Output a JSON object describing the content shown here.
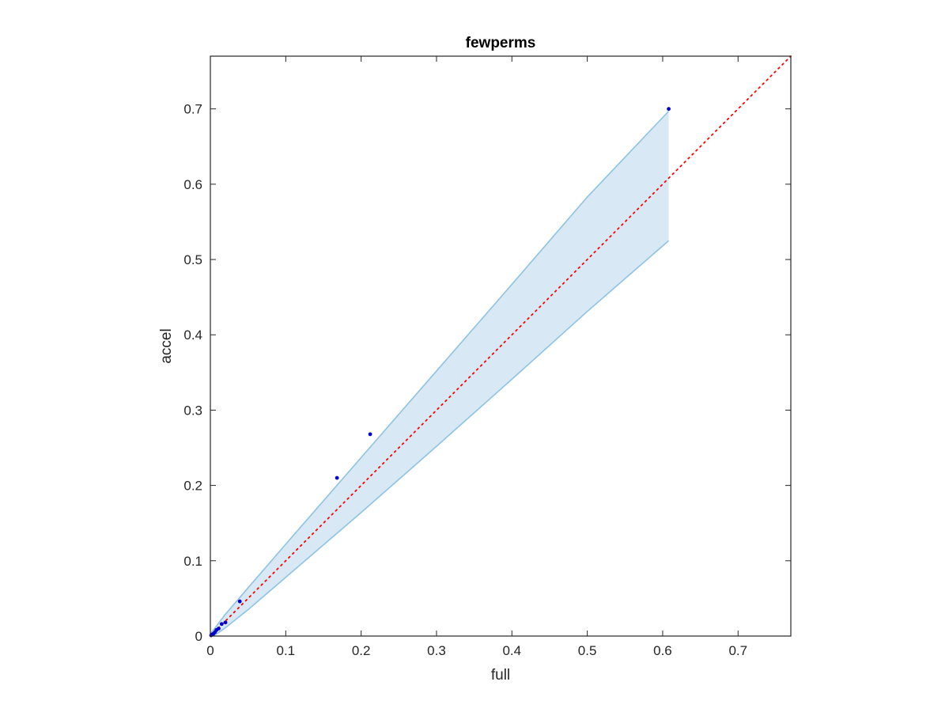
{
  "chart_data": {
    "type": "scatter",
    "title": "fewperms",
    "xlabel": "full",
    "ylabel": "accel",
    "xlim": [
      0,
      0.77
    ],
    "ylim": [
      0,
      0.77
    ],
    "xticks": [
      0,
      0.1,
      0.2,
      0.3,
      0.4,
      0.5,
      0.6,
      0.7
    ],
    "yticks": [
      0,
      0.1,
      0.2,
      0.3,
      0.4,
      0.5,
      0.6,
      0.7
    ],
    "xtick_labels": [
      "0",
      "0.1",
      "0.2",
      "0.3",
      "0.4",
      "0.5",
      "0.6",
      "0.7"
    ],
    "ytick_labels": [
      "0",
      "0.1",
      "0.2",
      "0.3",
      "0.4",
      "0.5",
      "0.6",
      "0.7"
    ],
    "grid": false,
    "points": {
      "x": [
        0.001,
        0.002,
        0.004,
        0.006,
        0.008,
        0.011,
        0.015,
        0.02,
        0.039,
        0.168,
        0.212,
        0.608
      ],
      "y": [
        0.001,
        0.002,
        0.003,
        0.005,
        0.008,
        0.01,
        0.016,
        0.018,
        0.046,
        0.21,
        0.268,
        0.7
      ],
      "color": "#0000cc"
    },
    "reference_line": {
      "x": [
        0,
        0.77
      ],
      "y": [
        0,
        0.77
      ],
      "style": "dotted",
      "color": "#ff0000"
    },
    "band": {
      "x": [
        0,
        0.005,
        0.01,
        0.02,
        0.05,
        0.1,
        0.2,
        0.3,
        0.4,
        0.5,
        0.608
      ],
      "upper": [
        0.003,
        0.009,
        0.016,
        0.029,
        0.064,
        0.122,
        0.237,
        0.352,
        0.467,
        0.583,
        0.697
      ],
      "lower": [
        0,
        0.001,
        0.004,
        0.011,
        0.035,
        0.078,
        0.164,
        0.252,
        0.341,
        0.431,
        0.525
      ],
      "fill_color": "#d8e8f4",
      "line_color": "#8ec3e4"
    }
  }
}
